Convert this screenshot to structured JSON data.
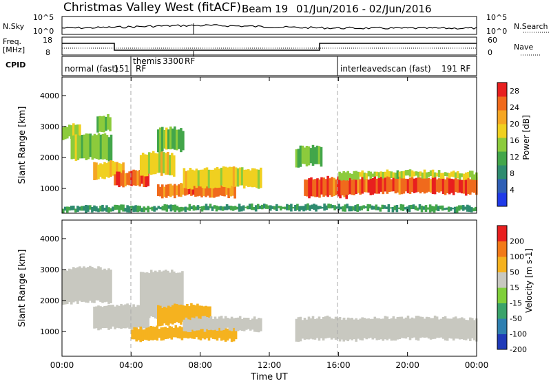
{
  "header": {
    "title": "Christmas Valley West (fitACF)",
    "beam": "Beam 19",
    "date_range": "01/Jun/2016 - 02/Jun/2016"
  },
  "noise_panel": {
    "left_label": "N.Sky",
    "right_label": "N.Search",
    "left_ticks": [
      "10^5",
      "10^0"
    ],
    "right_ticks": [
      "10^5",
      "10^0"
    ]
  },
  "freq_panel": {
    "left_label_1": "Freq.",
    "left_label_2": "[MHz]",
    "right_label": "Nave",
    "left_ticks": [
      "18",
      "8"
    ],
    "right_ticks": [
      "60",
      "0"
    ]
  },
  "cpid_panel": {
    "label": "CPID",
    "modes": [
      {
        "name": "normal (fast)",
        "id": "151",
        "rf": "RF"
      },
      {
        "name": "themis",
        "id": "3300",
        "rf": "RF"
      },
      {
        "name": "interleavedscan (fast)",
        "id": "191",
        "rf": "RF"
      }
    ]
  },
  "chart_data": [
    {
      "type": "heatmap",
      "panel": "power",
      "ylabel": "Slant Range [km]",
      "xlabel": "",
      "x_unit": "hours UT",
      "xlim": [
        0,
        24
      ],
      "ylim": [
        200,
        4600
      ],
      "yticks": [
        "1000",
        "2000",
        "3000",
        "4000"
      ],
      "colorbar": {
        "label": "Power [dB]",
        "ticks": [
          "4",
          "8",
          "12",
          "16",
          "20",
          "24",
          "28"
        ],
        "range": [
          0,
          30
        ],
        "colors": [
          "#1f3ae8",
          "#2f5fb5",
          "#2e8b6f",
          "#43a64a",
          "#8ccb3c",
          "#f0d020",
          "#f5a623",
          "#f06a1c",
          "#e81f1f"
        ]
      },
      "bands": [
        {
          "t0": 0.0,
          "t1": 1.0,
          "r0": 2600,
          "r1": 3000,
          "level": 16
        },
        {
          "t0": 0.5,
          "t1": 2.8,
          "r0": 1900,
          "r1": 2700,
          "level": 14
        },
        {
          "t0": 2.0,
          "t1": 2.8,
          "r0": 2800,
          "r1": 3300,
          "level": 14
        },
        {
          "t0": 1.8,
          "t1": 3.5,
          "r0": 1300,
          "r1": 1800,
          "level": 20
        },
        {
          "t0": 3.0,
          "t1": 5.0,
          "r0": 1050,
          "r1": 1500,
          "level": 26
        },
        {
          "t0": 4.5,
          "t1": 6.5,
          "r0": 1400,
          "r1": 2100,
          "level": 18
        },
        {
          "t0": 5.5,
          "t1": 7.0,
          "r0": 2200,
          "r1": 2900,
          "level": 14
        },
        {
          "t0": 5.5,
          "t1": 10.0,
          "r0": 700,
          "r1": 1100,
          "level": 24
        },
        {
          "t0": 7.0,
          "t1": 11.5,
          "r0": 1000,
          "r1": 1600,
          "level": 18
        },
        {
          "t0": 13.5,
          "t1": 15.0,
          "r0": 1700,
          "r1": 2300,
          "level": 14
        },
        {
          "t0": 14.0,
          "t1": 16.5,
          "r0": 700,
          "r1": 1300,
          "level": 26
        },
        {
          "t0": 16.0,
          "t1": 24.0,
          "r0": 800,
          "r1": 1300,
          "level": 26
        },
        {
          "t0": 16.0,
          "t1": 24.0,
          "r0": 1300,
          "r1": 1500,
          "level": 16
        },
        {
          "t0": 0.0,
          "t1": 24.0,
          "r0": 250,
          "r1": 400,
          "level": 10
        }
      ]
    },
    {
      "type": "heatmap",
      "panel": "velocity",
      "ylabel": "Slant Range [km]",
      "xlabel": "Time UT",
      "xticks": [
        "00:00",
        "04:00",
        "08:00",
        "12:00",
        "16:00",
        "20:00",
        "00:00"
      ],
      "x_unit": "hours UT",
      "xlim": [
        0,
        24
      ],
      "ylim": [
        200,
        4600
      ],
      "yticks": [
        "1000",
        "2000",
        "3000",
        "4000"
      ],
      "colorbar": {
        "label": "Velocity [m s-1]",
        "ticks": [
          "200",
          "100",
          "50",
          "15",
          "-15",
          "-50",
          "-100",
          "-200"
        ],
        "colors": [
          "#1f3ab8",
          "#2e7fb0",
          "#3aa36a",
          "#7fcf3a",
          "#c8c8c0",
          "#f5b21f",
          "#f27a18",
          "#e81f1f"
        ]
      },
      "bands": [
        {
          "t0": 0.0,
          "t1": 2.8,
          "r0": 1900,
          "r1": 3000,
          "level": 0
        },
        {
          "t0": 1.8,
          "t1": 5.0,
          "r0": 1050,
          "r1": 1800,
          "level": 0
        },
        {
          "t0": 4.5,
          "t1": 7.0,
          "r0": 1400,
          "r1": 2900,
          "level": 0
        },
        {
          "t0": 5.5,
          "t1": 8.5,
          "r0": 1200,
          "r1": 1800,
          "level": -40
        },
        {
          "t0": 4.0,
          "t1": 10.0,
          "r0": 700,
          "r1": 1100,
          "level": -30
        },
        {
          "t0": 7.0,
          "t1": 11.5,
          "r0": 1000,
          "r1": 1400,
          "level": 0
        },
        {
          "t0": 13.5,
          "t1": 16.5,
          "r0": 700,
          "r1": 1400,
          "level": 0
        },
        {
          "t0": 16.0,
          "t1": 24.0,
          "r0": 700,
          "r1": 1400,
          "level": 0
        }
      ]
    }
  ],
  "colors": {
    "background": "#ffffff",
    "axes": "#000000",
    "dashed_lines": "#aaaaaa"
  }
}
